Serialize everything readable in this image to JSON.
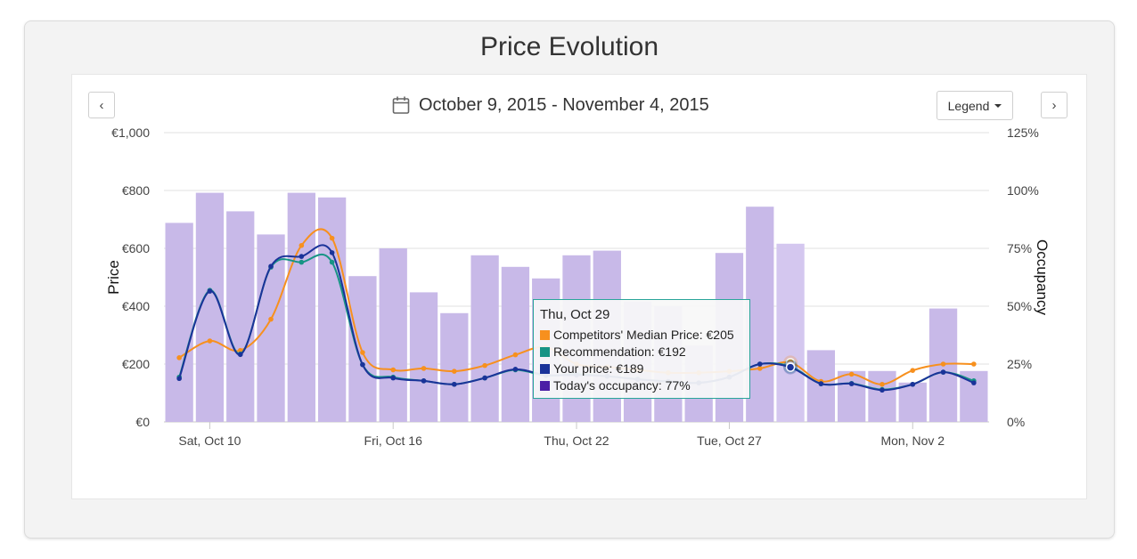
{
  "card": {
    "title": "Price Evolution"
  },
  "toolbar": {
    "date_range": "October 9, 2015 - November 4, 2015",
    "legend_label": "Legend",
    "prev_symbol": "‹",
    "next_symbol": "›",
    "calendar_icon": "calendar-icon"
  },
  "chart_data": {
    "type": "bar+line",
    "title": "",
    "x": [
      "Oct 9",
      "Oct 10",
      "Oct 11",
      "Oct 12",
      "Oct 13",
      "Oct 14",
      "Oct 15",
      "Oct 16",
      "Oct 17",
      "Oct 18",
      "Oct 19",
      "Oct 20",
      "Oct 21",
      "Oct 22",
      "Oct 23",
      "Oct 24",
      "Oct 25",
      "Oct 26",
      "Oct 27",
      "Oct 28",
      "Oct 29",
      "Oct 30",
      "Oct 31",
      "Nov 1",
      "Nov 2",
      "Nov 3",
      "Nov 4"
    ],
    "x_tick_labels": [
      {
        "index": 1,
        "label": "Sat, Oct 10"
      },
      {
        "index": 7,
        "label": "Fri, Oct 16"
      },
      {
        "index": 13,
        "label": "Thu, Oct 22"
      },
      {
        "index": 18,
        "label": "Tue, Oct 27"
      },
      {
        "index": 24,
        "label": "Mon, Nov 2"
      }
    ],
    "y_left": {
      "label": "Price",
      "min": 0,
      "max": 1000,
      "ticks": [
        "€0",
        "€200",
        "€400",
        "€600",
        "€800",
        "€1,000"
      ]
    },
    "y_right": {
      "label": "Occupancy",
      "min": 0,
      "max": 125,
      "ticks": [
        "0%",
        "25%",
        "50%",
        "75%",
        "100%",
        "125%"
      ]
    },
    "grid": true,
    "series": [
      {
        "name": "Today's occupancy",
        "kind": "bar",
        "axis": "right",
        "color": "#c8b9e8",
        "values": [
          86,
          99,
          91,
          81,
          99,
          97,
          63,
          75,
          56,
          47,
          72,
          67,
          62,
          72,
          74,
          52,
          50,
          33,
          73,
          93,
          77,
          31,
          22,
          22,
          17,
          49,
          22
        ]
      },
      {
        "name": "Competitors' Median Price",
        "kind": "line",
        "axis": "left",
        "color": "#f7901e",
        "values": [
          222,
          280,
          247,
          355,
          610,
          635,
          240,
          180,
          185,
          175,
          195,
          232,
          258,
          200,
          190,
          180,
          170,
          170,
          175,
          185,
          205,
          140,
          165,
          130,
          178,
          200,
          200
        ]
      },
      {
        "name": "Recommendation",
        "kind": "line",
        "axis": "left",
        "color": "#179485",
        "values": [
          155,
          455,
          235,
          535,
          552,
          552,
          198,
          155,
          142,
          130,
          152,
          180,
          160,
          165,
          158,
          148,
          140,
          135,
          155,
          200,
          192,
          132,
          133,
          112,
          130,
          172,
          142
        ]
      },
      {
        "name": "Your price",
        "kind": "line",
        "axis": "left",
        "color": "#1a3399",
        "values": [
          150,
          452,
          233,
          538,
          572,
          585,
          198,
          152,
          142,
          130,
          152,
          182,
          162,
          162,
          158,
          147,
          140,
          135,
          155,
          200,
          189,
          132,
          132,
          110,
          130,
          172,
          135
        ]
      }
    ],
    "highlight_index": 20,
    "tooltip": {
      "title": "Thu, Oct 29",
      "rows": [
        {
          "text": "Competitors' Median Price: €205",
          "color": "#f7901e"
        },
        {
          "text": "Recommendation: €192",
          "color": "#179485"
        },
        {
          "text": "Your price: €189",
          "color": "#1a3399"
        },
        {
          "text": "Today's occupancy: 77%",
          "color": "#4b1fa6"
        }
      ]
    }
  }
}
